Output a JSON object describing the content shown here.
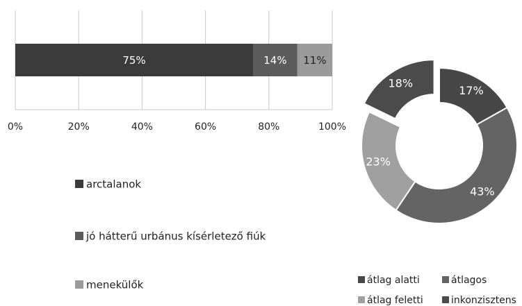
{
  "chart_data": [
    {
      "type": "stacked-bar-horizontal",
      "categories": [
        null
      ],
      "series": [
        {
          "name": "arctalanok",
          "color": "#3b3b3b",
          "values": [
            75
          ],
          "value_labels": [
            "75%"
          ]
        },
        {
          "name": "jó hátterű urbánus kísérletező fiúk",
          "color": "#5c5c5c",
          "values": [
            14
          ],
          "value_labels": [
            "14%"
          ]
        },
        {
          "name": "menekülők",
          "color": "#9b9b9b",
          "values": [
            11
          ],
          "value_labels": [
            "11%"
          ]
        }
      ],
      "xlim": [
        0,
        100
      ],
      "xticks": [
        {
          "value": 0,
          "label": "0%"
        },
        {
          "value": 20,
          "label": "20%"
        },
        {
          "value": 40,
          "label": "40%"
        },
        {
          "value": 60,
          "label": "60%"
        },
        {
          "value": 80,
          "label": "80%"
        },
        {
          "value": 100,
          "label": "100%"
        }
      ],
      "grid": true
    },
    {
      "type": "donut",
      "categories": [
        "átlag alatti",
        "átlagos",
        "átlag feletti",
        "inkonzisztens"
      ],
      "values": [
        17,
        43,
        23,
        18
      ],
      "value_labels": [
        "17%",
        "43%",
        "23%",
        "18%"
      ],
      "colors": [
        "#474747",
        "#646464",
        "#a0a0a0",
        "#4b4b4b"
      ],
      "exploded": "inkonzisztens"
    }
  ]
}
